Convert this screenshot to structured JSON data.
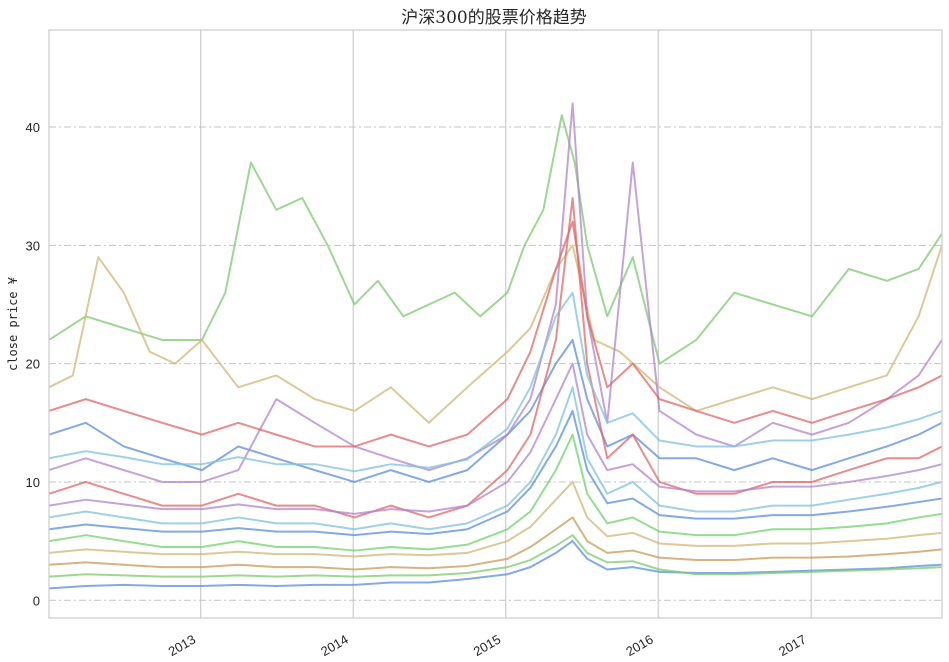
{
  "chart_data": {
    "type": "line",
    "title": "沪深300的股票价格趋势",
    "xlabel": "",
    "ylabel": "close price ¥",
    "x_range": [
      "2012-01-04",
      "2017-11-10"
    ],
    "x_ticks": [
      {
        "date": "2013-01-01",
        "label": "2013"
      },
      {
        "date": "2014-01-01",
        "label": "2014"
      },
      {
        "date": "2015-01-01",
        "label": "2015"
      },
      {
        "date": "2016-01-01",
        "label": "2016"
      },
      {
        "date": "2017-01-01",
        "label": "2017"
      }
    ],
    "ylim": [
      -1.5,
      48.2
    ],
    "y_ticks": [
      0,
      10,
      20,
      30,
      40
    ],
    "grid": true,
    "legend": "none",
    "colors": [
      "#5a8ede",
      "#e06665",
      "#7bcb6e",
      "#b284cc",
      "#d2b675",
      "#7fc1de",
      "#6fd36b",
      "#c89a55"
    ],
    "series": [
      {
        "color": "#7bcb6e",
        "x": [
          "2012-01-04",
          "2012-04-01",
          "2012-07-01",
          "2012-10-01",
          "2013-01-04",
          "2013-03-01",
          "2013-05-01",
          "2013-07-01",
          "2013-09-01",
          "2013-11-01",
          "2014-01-04",
          "2014-03-01",
          "2014-05-01",
          "2014-07-01",
          "2014-09-01",
          "2014-11-01",
          "2015-01-05",
          "2015-02-15",
          "2015-04-01",
          "2015-05-15",
          "2015-06-15",
          "2015-07-15",
          "2015-09-01",
          "2015-11-01",
          "2016-01-04",
          "2016-04-01",
          "2016-07-01",
          "2016-10-01",
          "2017-01-03",
          "2017-04-01",
          "2017-07-01",
          "2017-09-15",
          "2017-11-10"
        ],
        "y": [
          22,
          24,
          23,
          22,
          22,
          26,
          37,
          33,
          34,
          30,
          25,
          27,
          24,
          25,
          26,
          24,
          26,
          30,
          33,
          41,
          37,
          30,
          24,
          29,
          20,
          22,
          26,
          25,
          24,
          28,
          27,
          28,
          31
        ]
      },
      {
        "color": "#d2b675",
        "x": [
          "2012-01-04",
          "2012-03-01",
          "2012-05-01",
          "2012-07-01",
          "2012-09-01",
          "2012-11-01",
          "2013-01-04",
          "2013-04-01",
          "2013-07-01",
          "2013-10-01",
          "2014-01-04",
          "2014-04-01",
          "2014-07-01",
          "2014-10-01",
          "2015-01-05",
          "2015-03-01",
          "2015-05-01",
          "2015-06-10",
          "2015-08-01",
          "2015-10-01",
          "2016-01-04",
          "2016-04-01",
          "2016-07-01",
          "2016-10-01",
          "2017-01-03",
          "2017-04-01",
          "2017-07-01",
          "2017-09-15",
          "2017-11-10"
        ],
        "y": [
          18,
          19,
          29,
          26,
          21,
          20,
          22,
          18,
          19,
          17,
          16,
          18,
          15,
          18,
          21,
          23,
          28,
          30,
          22,
          21,
          18,
          16,
          17,
          18,
          17,
          18,
          19,
          24,
          30
        ]
      },
      {
        "color": "#5a8ede",
        "x": [
          "2012-01-04",
          "2012-04-01",
          "2012-07-01",
          "2012-10-01",
          "2013-01-04",
          "2013-04-01",
          "2013-07-01",
          "2013-10-01",
          "2014-01-04",
          "2014-04-01",
          "2014-07-01",
          "2014-10-01",
          "2015-01-05",
          "2015-03-01",
          "2015-05-01",
          "2015-06-10",
          "2015-07-15",
          "2015-09-01",
          "2015-11-01",
          "2016-01-04",
          "2016-04-01",
          "2016-07-01",
          "2016-10-01",
          "2017-01-03",
          "2017-04-01",
          "2017-07-01",
          "2017-09-15",
          "2017-11-10"
        ],
        "y": [
          14,
          15,
          13,
          12,
          11,
          13,
          12,
          11,
          10,
          11,
          10,
          11,
          14,
          16,
          20,
          22,
          17,
          13,
          14,
          12,
          12,
          11,
          12,
          11,
          12,
          13,
          14,
          15
        ]
      },
      {
        "color": "#e06665",
        "x": [
          "2012-01-04",
          "2012-04-01",
          "2012-07-01",
          "2012-10-01",
          "2013-01-04",
          "2013-04-01",
          "2013-07-01",
          "2013-10-01",
          "2014-01-04",
          "2014-04-01",
          "2014-07-01",
          "2014-10-01",
          "2015-01-05",
          "2015-03-01",
          "2015-05-01",
          "2015-06-10",
          "2015-07-15",
          "2015-09-01",
          "2015-11-01",
          "2016-01-04",
          "2016-04-01",
          "2016-07-01",
          "2016-10-01",
          "2017-01-03",
          "2017-04-01",
          "2017-07-01",
          "2017-09-15",
          "2017-11-10"
        ],
        "y": [
          9,
          10,
          9,
          8,
          8,
          9,
          8,
          8,
          7,
          8,
          7,
          8,
          11,
          14,
          22,
          34,
          20,
          12,
          14,
          10,
          9,
          9,
          10,
          10,
          11,
          12,
          12,
          13
        ]
      },
      {
        "color": "#b284cc",
        "x": [
          "2012-01-04",
          "2012-04-01",
          "2012-07-01",
          "2012-10-01",
          "2013-01-04",
          "2013-04-01",
          "2013-07-01",
          "2013-10-01",
          "2014-01-04",
          "2014-04-01",
          "2014-07-01",
          "2014-10-01",
          "2015-01-05",
          "2015-03-01",
          "2015-05-01",
          "2015-06-10",
          "2015-07-15",
          "2015-09-01",
          "2015-11-01",
          "2016-01-04",
          "2016-04-01",
          "2016-07-01",
          "2016-10-01",
          "2017-01-03",
          "2017-04-01",
          "2017-07-01",
          "2017-09-15",
          "2017-11-10"
        ],
        "y": [
          11,
          12,
          11,
          10,
          10,
          11,
          17,
          15,
          13,
          12,
          11,
          12,
          14,
          17,
          25,
          42,
          24,
          15,
          37,
          16,
          14,
          13,
          15,
          14,
          15,
          17,
          19,
          22
        ]
      },
      {
        "color": "#7fc1de",
        "x": [
          "2012-01-04",
          "2012-04-01",
          "2012-07-01",
          "2012-10-01",
          "2013-01-04",
          "2013-04-01",
          "2013-07-01",
          "2013-10-01",
          "2014-01-04",
          "2014-04-01",
          "2014-07-01",
          "2014-10-01",
          "2015-01-05",
          "2015-03-01",
          "2015-05-01",
          "2015-06-10",
          "2015-07-15",
          "2015-09-01",
          "2015-11-01",
          "2016-01-04",
          "2016-04-01",
          "2016-07-01",
          "2016-10-01",
          "2017-01-03",
          "2017-04-01",
          "2017-07-01",
          "2017-09-15",
          "2017-11-10"
        ],
        "y": [
          7,
          7.5,
          7,
          6.5,
          6.5,
          7,
          6.5,
          6.5,
          6,
          6.5,
          6,
          6.5,
          8,
          10,
          14,
          18,
          12,
          9,
          10,
          8,
          7.5,
          7.5,
          8,
          8,
          8.5,
          9,
          9.5,
          10
        ]
      },
      {
        "color": "#6fd36b",
        "x": [
          "2012-01-04",
          "2012-04-01",
          "2012-07-01",
          "2012-10-01",
          "2013-01-04",
          "2013-04-01",
          "2013-07-01",
          "2013-10-01",
          "2014-01-04",
          "2014-04-01",
          "2014-07-01",
          "2014-10-01",
          "2015-01-05",
          "2015-03-01",
          "2015-05-01",
          "2015-06-10",
          "2015-07-15",
          "2015-09-01",
          "2015-11-01",
          "2016-01-04",
          "2016-04-01",
          "2016-07-01",
          "2016-10-01",
          "2017-01-03",
          "2017-04-01",
          "2017-07-01",
          "2017-09-15",
          "2017-11-10"
        ],
        "y": [
          5,
          5.5,
          5,
          4.5,
          4.5,
          5,
          4.5,
          4.5,
          4.2,
          4.5,
          4.3,
          4.7,
          6,
          7.5,
          11,
          14,
          9,
          6.5,
          7,
          5.8,
          5.5,
          5.5,
          6,
          6,
          6.2,
          6.5,
          7,
          7.3
        ]
      },
      {
        "color": "#c89a55",
        "x": [
          "2012-01-04",
          "2012-04-01",
          "2012-07-01",
          "2012-10-01",
          "2013-01-04",
          "2013-04-01",
          "2013-07-01",
          "2013-10-01",
          "2014-01-04",
          "2014-04-01",
          "2014-07-01",
          "2014-10-01",
          "2015-01-05",
          "2015-03-01",
          "2015-05-01",
          "2015-06-10",
          "2015-07-15",
          "2015-09-01",
          "2015-11-01",
          "2016-01-04",
          "2016-04-01",
          "2016-07-01",
          "2016-10-01",
          "2017-01-03",
          "2017-04-01",
          "2017-07-01",
          "2017-09-15",
          "2017-11-10"
        ],
        "y": [
          3,
          3.2,
          3,
          2.8,
          2.8,
          3,
          2.8,
          2.8,
          2.6,
          2.8,
          2.7,
          2.9,
          3.5,
          4.5,
          6,
          7,
          5,
          4,
          4.2,
          3.6,
          3.4,
          3.4,
          3.6,
          3.6,
          3.7,
          3.9,
          4.1,
          4.3
        ]
      },
      {
        "color": "#5a8ede",
        "x": [
          "2012-01-04",
          "2012-04-01",
          "2012-07-01",
          "2012-10-01",
          "2013-01-04",
          "2013-04-01",
          "2013-07-01",
          "2013-10-01",
          "2014-01-04",
          "2014-04-01",
          "2014-07-01",
          "2014-10-01",
          "2015-01-05",
          "2015-03-01",
          "2015-05-01",
          "2015-06-10",
          "2015-07-15",
          "2015-09-01",
          "2015-11-01",
          "2016-01-04",
          "2016-04-01",
          "2016-07-01",
          "2016-10-01",
          "2017-01-03",
          "2017-04-01",
          "2017-07-01",
          "2017-09-15",
          "2017-11-10"
        ],
        "y": [
          1,
          1.2,
          1.3,
          1.2,
          1.2,
          1.3,
          1.2,
          1.3,
          1.3,
          1.5,
          1.5,
          1.8,
          2.2,
          2.8,
          4,
          5,
          3.5,
          2.6,
          2.8,
          2.4,
          2.3,
          2.3,
          2.4,
          2.5,
          2.6,
          2.7,
          2.9,
          3
        ]
      },
      {
        "color": "#7bcb6e",
        "x": [
          "2012-01-04",
          "2012-04-01",
          "2012-07-01",
          "2012-10-01",
          "2013-01-04",
          "2013-04-01",
          "2013-07-01",
          "2013-10-01",
          "2014-01-04",
          "2014-04-01",
          "2014-07-01",
          "2014-10-01",
          "2015-01-05",
          "2015-03-01",
          "2015-05-01",
          "2015-06-10",
          "2015-07-15",
          "2015-09-01",
          "2015-11-01",
          "2016-01-04",
          "2016-04-01",
          "2016-07-01",
          "2016-10-01",
          "2017-01-03",
          "2017-04-01",
          "2017-07-01",
          "2017-09-15",
          "2017-11-10"
        ],
        "y": [
          2,
          2.2,
          2.1,
          2,
          2,
          2.1,
          2,
          2.1,
          2,
          2.1,
          2.1,
          2.3,
          2.8,
          3.4,
          4.6,
          5.5,
          4,
          3.2,
          3.3,
          2.6,
          2.2,
          2.2,
          2.3,
          2.4,
          2.5,
          2.6,
          2.7,
          2.8
        ]
      },
      {
        "color": "#e06665",
        "x": [
          "2012-01-04",
          "2012-04-01",
          "2012-07-01",
          "2012-10-01",
          "2013-01-04",
          "2013-04-01",
          "2013-07-01",
          "2013-10-01",
          "2014-01-04",
          "2014-04-01",
          "2014-07-01",
          "2014-10-01",
          "2015-01-05",
          "2015-03-01",
          "2015-05-01",
          "2015-06-10",
          "2015-07-15",
          "2015-09-01",
          "2015-11-01",
          "2016-01-04",
          "2016-04-01",
          "2016-07-01",
          "2016-10-01",
          "2017-01-03",
          "2017-04-01",
          "2017-07-01",
          "2017-09-15",
          "2017-11-10"
        ],
        "y": [
          16,
          17,
          16,
          15,
          14,
          15,
          14,
          13,
          13,
          14,
          13,
          14,
          17,
          21,
          28,
          32,
          24,
          18,
          20,
          17,
          16,
          15,
          16,
          15,
          16,
          17,
          18,
          19
        ]
      },
      {
        "color": "#d2b675",
        "x": [
          "2012-01-04",
          "2012-04-01",
          "2012-07-01",
          "2012-10-01",
          "2013-01-04",
          "2013-04-01",
          "2013-07-01",
          "2013-10-01",
          "2014-01-04",
          "2014-04-01",
          "2014-07-01",
          "2014-10-01",
          "2015-01-05",
          "2015-03-01",
          "2015-05-01",
          "2015-06-10",
          "2015-07-15",
          "2015-09-01",
          "2015-11-01",
          "2016-01-04",
          "2016-04-01",
          "2016-07-01",
          "2016-10-01",
          "2017-01-03",
          "2017-04-01",
          "2017-07-01",
          "2017-09-15",
          "2017-11-10"
        ],
        "y": [
          4,
          4.3,
          4.1,
          3.9,
          3.9,
          4.1,
          3.9,
          3.9,
          3.7,
          3.9,
          3.8,
          4,
          5,
          6.2,
          8.5,
          10,
          7,
          5.4,
          5.7,
          4.8,
          4.6,
          4.6,
          4.8,
          4.8,
          5,
          5.2,
          5.5,
          5.7
        ]
      },
      {
        "color": "#5a8ede",
        "x": [
          "2012-01-04",
          "2012-04-01",
          "2012-07-01",
          "2012-10-01",
          "2013-01-04",
          "2013-04-01",
          "2013-07-01",
          "2013-10-01",
          "2014-01-04",
          "2014-04-01",
          "2014-07-01",
          "2014-10-01",
          "2015-01-05",
          "2015-03-01",
          "2015-05-01",
          "2015-06-10",
          "2015-07-15",
          "2015-09-01",
          "2015-11-01",
          "2016-01-04",
          "2016-04-01",
          "2016-07-01",
          "2016-10-01",
          "2017-01-03",
          "2017-04-01",
          "2017-07-01",
          "2017-09-15",
          "2017-11-10"
        ],
        "y": [
          6,
          6.4,
          6.1,
          5.8,
          5.8,
          6.1,
          5.8,
          5.8,
          5.5,
          5.8,
          5.6,
          6,
          7.5,
          9.5,
          13,
          16,
          11,
          8.2,
          8.6,
          7.2,
          6.9,
          6.9,
          7.2,
          7.2,
          7.5,
          7.9,
          8.3,
          8.6
        ]
      },
      {
        "color": "#b284cc",
        "x": [
          "2012-01-04",
          "2012-04-01",
          "2012-07-01",
          "2012-10-01",
          "2013-01-04",
          "2013-04-01",
          "2013-07-01",
          "2013-10-01",
          "2014-01-04",
          "2014-04-01",
          "2014-07-01",
          "2014-10-01",
          "2015-01-05",
          "2015-03-01",
          "2015-05-01",
          "2015-06-10",
          "2015-07-15",
          "2015-09-01",
          "2015-11-01",
          "2016-01-04",
          "2016-04-01",
          "2016-07-01",
          "2016-10-01",
          "2017-01-03",
          "2017-04-01",
          "2017-07-01",
          "2017-09-15",
          "2017-11-10"
        ],
        "y": [
          8,
          8.5,
          8.1,
          7.7,
          7.7,
          8.1,
          7.7,
          7.7,
          7.3,
          7.7,
          7.5,
          8,
          10,
          12.5,
          17,
          20,
          14,
          11,
          11.5,
          9.6,
          9.2,
          9.2,
          9.6,
          9.6,
          10,
          10.5,
          11,
          11.5
        ]
      },
      {
        "color": "#7fc1de",
        "x": [
          "2012-01-04",
          "2012-04-01",
          "2012-07-01",
          "2012-10-01",
          "2013-01-04",
          "2013-04-01",
          "2013-07-01",
          "2013-10-01",
          "2014-01-04",
          "2014-04-01",
          "2014-07-01",
          "2014-10-01",
          "2015-01-05",
          "2015-03-01",
          "2015-05-01",
          "2015-06-10",
          "2015-07-15",
          "2015-09-01",
          "2015-11-01",
          "2016-01-04",
          "2016-04-01",
          "2016-07-01",
          "2016-10-01",
          "2017-01-03",
          "2017-04-01",
          "2017-07-01",
          "2017-09-15",
          "2017-11-10"
        ],
        "y": [
          12,
          12.6,
          12.1,
          11.5,
          11.5,
          12.1,
          11.5,
          11.5,
          10.9,
          11.5,
          11.2,
          11.9,
          14.5,
          18,
          24,
          26,
          19,
          15,
          15.8,
          13.5,
          13,
          13,
          13.5,
          13.5,
          14,
          14.6,
          15.3,
          16
        ]
      }
    ]
  }
}
